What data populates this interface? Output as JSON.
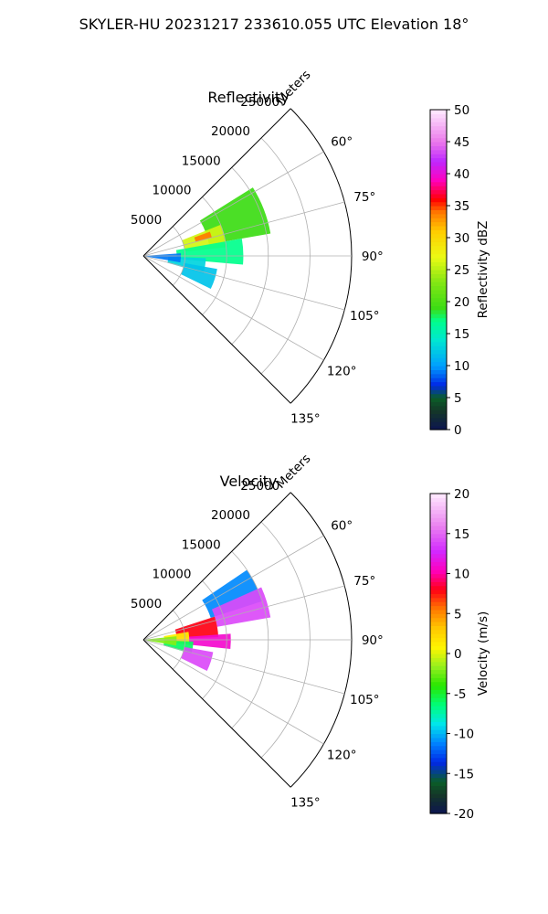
{
  "title": "SKYLER-HU  20231217  233610.055 UTC Elevation 18°",
  "chart_data": [
    {
      "type": "polar-sector",
      "title": "Reflectivity",
      "radial_label": "Meters",
      "radial_ticks": [
        5000,
        10000,
        15000,
        20000,
        25000
      ],
      "radial_max": 25000,
      "angle_ticks_deg": [
        60,
        75,
        90,
        105,
        120,
        135
      ],
      "angle_range_deg": [
        45,
        135
      ],
      "grid": true,
      "colorbar": {
        "label": "Reflectivity dBZ",
        "min": 0,
        "max": 50,
        "ticks": [
          0,
          5,
          10,
          15,
          20,
          25,
          30,
          35,
          40,
          45,
          50
        ]
      },
      "echo_regions": [
        {
          "az": [
            58,
            80
          ],
          "range": [
            8000,
            15500
          ],
          "value": 19
        },
        {
          "az": [
            68,
            84
          ],
          "range": [
            5000,
            10000
          ],
          "value": 26
        },
        {
          "az": [
            70,
            75
          ],
          "range": [
            6500,
            8500
          ],
          "value": 34
        },
        {
          "az": [
            80,
            95
          ],
          "range": [
            4000,
            12000
          ],
          "value": 17
        },
        {
          "az": [
            92,
            106
          ],
          "range": [
            3000,
            7500
          ],
          "value": 13
        },
        {
          "az": [
            100,
            116
          ],
          "range": [
            5000,
            9000
          ],
          "value": 12
        },
        {
          "az": [
            86,
            100
          ],
          "range": [
            200,
            4500
          ],
          "value": 9
        }
      ]
    },
    {
      "type": "polar-sector",
      "title": "Velocity",
      "radial_label": "Meters",
      "radial_ticks": [
        5000,
        10000,
        15000,
        20000,
        25000
      ],
      "radial_max": 25000,
      "angle_ticks_deg": [
        60,
        75,
        90,
        105,
        120,
        135
      ],
      "angle_range_deg": [
        45,
        135
      ],
      "grid": true,
      "colorbar": {
        "label": "Velocity (m/s)",
        "min": -20,
        "max": 20,
        "ticks": [
          -20,
          -15,
          -10,
          -5,
          0,
          5,
          10,
          15,
          20
        ]
      },
      "echo_regions": [
        {
          "az": [
            56,
            72
          ],
          "range": [
            8500,
            15000
          ],
          "value": -11
        },
        {
          "az": [
            66,
            80
          ],
          "range": [
            9000,
            15500
          ],
          "value": 14
        },
        {
          "az": [
            72,
            88
          ],
          "range": [
            4000,
            9000
          ],
          "value": 8
        },
        {
          "az": [
            86,
            96
          ],
          "range": [
            4000,
            10500
          ],
          "value": 11
        },
        {
          "az": [
            80,
            96
          ],
          "range": [
            2500,
            5500
          ],
          "value": 1
        },
        {
          "az": [
            92,
            106
          ],
          "range": [
            2500,
            6000
          ],
          "value": -6
        },
        {
          "az": [
            100,
            116
          ],
          "range": [
            5000,
            8500
          ],
          "value": 14
        },
        {
          "az": [
            84,
            100
          ],
          "range": [
            200,
            4000
          ],
          "value": -2
        }
      ]
    }
  ]
}
